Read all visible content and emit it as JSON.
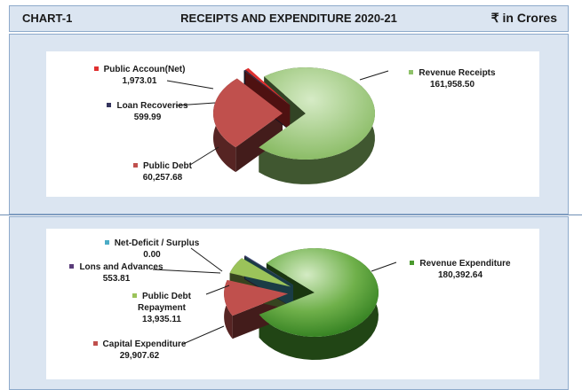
{
  "header": {
    "left": "CHART-1",
    "title": "RECEIPTS AND EXPENDITURE 2020-21",
    "unit": "₹ in Crores"
  },
  "chart_data": [
    {
      "type": "pie",
      "categories": [
        "Revenue Receipts",
        "Public Debt",
        "Loan Recoveries",
        "Public Accoun(Net)"
      ],
      "values": [
        161958.5,
        60257.68,
        599.99,
        1973.01
      ],
      "value_labels": [
        "161,958.50",
        "60,257.68",
        "599.99",
        "1,973.01"
      ],
      "colors": [
        "#8fc26a",
        "#c0504d",
        "#35355e",
        "#e03030"
      ],
      "exploded": [
        "Public Debt",
        "Loan Recoveries",
        "Public Accoun(Net)"
      ]
    },
    {
      "type": "pie",
      "categories": [
        "Revenue  Expenditure",
        "Capital Expenditure",
        "Public Debt Repayment",
        "Lons and Advances",
        "Net-Deficit / Surplus"
      ],
      "values": [
        180392.64,
        29907.62,
        13935.11,
        553.81,
        0.0
      ],
      "value_labels": [
        "180,392.64",
        "29,907.62",
        "13,935.11",
        "553.81",
        "0.00"
      ],
      "colors": [
        "#4a9a2e",
        "#c0504d",
        "#9bc35a",
        "#5a3d7a",
        "#4bacc6"
      ],
      "exploded": [
        "Capital Expenditure",
        "Public Debt Repayment",
        "Lons and Advances",
        "Net-Deficit / Surplus"
      ]
    }
  ]
}
